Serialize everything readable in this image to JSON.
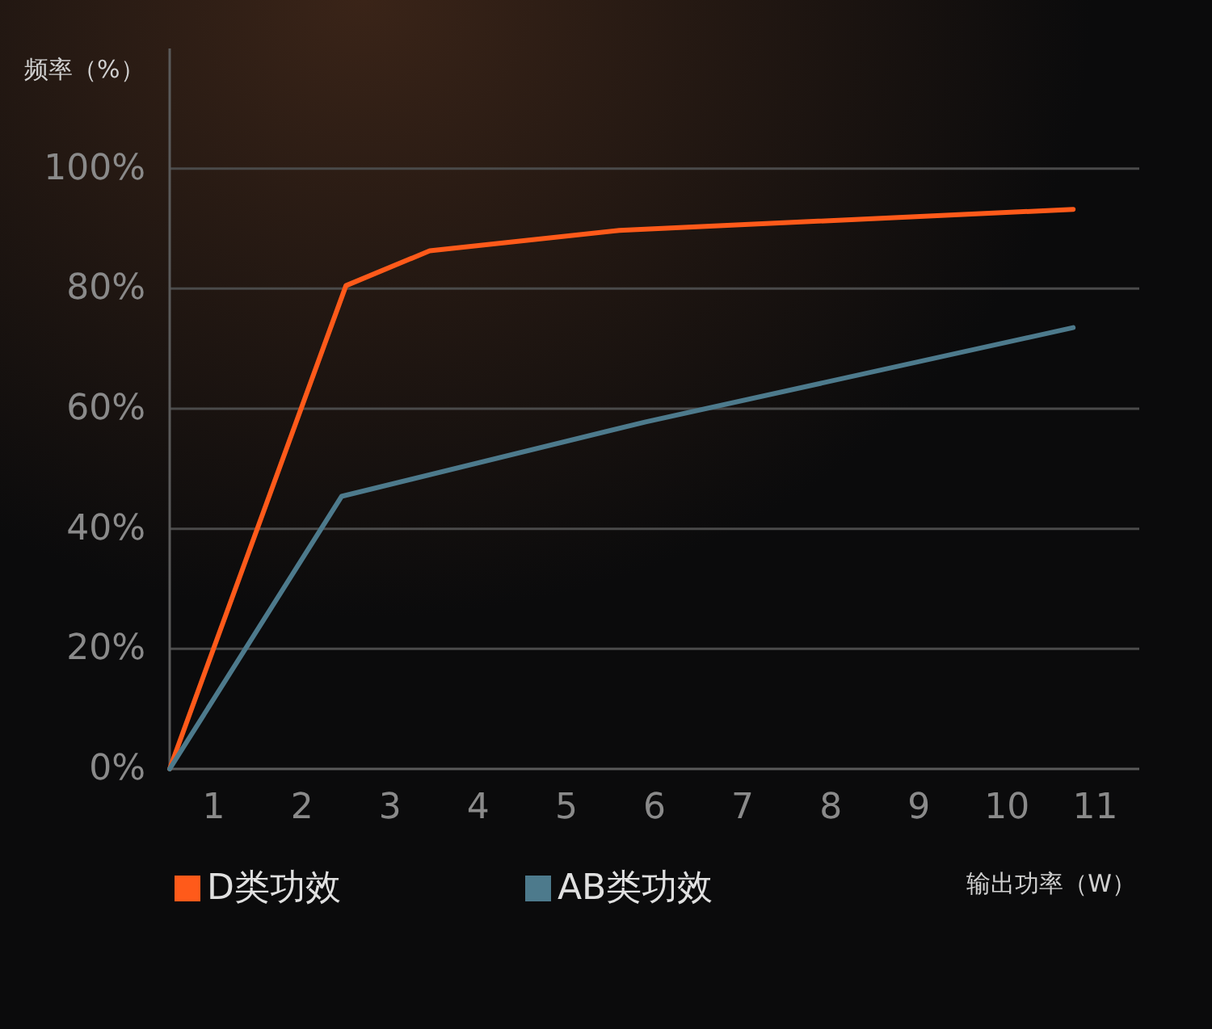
{
  "chart_data": {
    "type": "line",
    "ylabel": "频率（%）",
    "xlabel": "输出功率（W）",
    "xlim": [
      0.5,
      11.5
    ],
    "xticks": [
      1,
      2,
      3,
      4,
      5,
      6,
      7,
      8,
      9,
      10,
      11
    ],
    "ylim": [
      0,
      120
    ],
    "yticks": [
      {
        "value": 0,
        "label": "0%"
      },
      {
        "value": 20,
        "label": "20%"
      },
      {
        "value": 40,
        "label": "40%"
      },
      {
        "value": 60,
        "label": "60%"
      },
      {
        "value": 80,
        "label": "80%"
      },
      {
        "value": 100,
        "label": "100%"
      }
    ],
    "grid": "y",
    "legend": "bottom left",
    "marker": "none",
    "line_style": "solid",
    "series": [
      {
        "name": "D类功效",
        "color": "#ff5a1a",
        "x": [
          0.5,
          2.5,
          3.45,
          5.6,
          10.75
        ],
        "values": [
          0,
          80.5,
          86.3,
          89.7,
          93.2
        ]
      },
      {
        "name": "AB类功效",
        "color": "#4d7a8c",
        "x": [
          0.5,
          2.45,
          5.9,
          10.75
        ],
        "values": [
          0,
          45.4,
          57.8,
          73.5
        ]
      }
    ]
  }
}
